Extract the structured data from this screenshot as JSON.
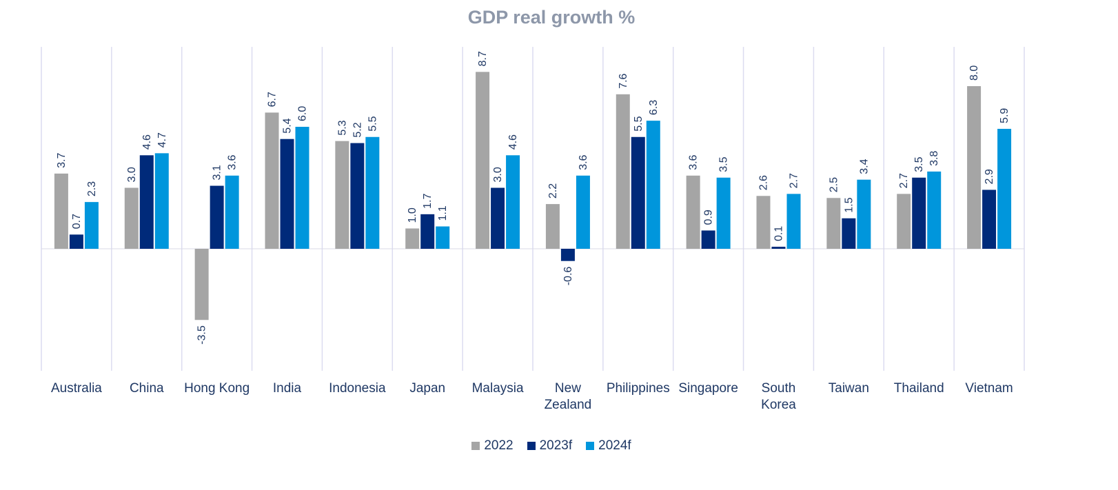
{
  "chart_data": {
    "type": "bar",
    "title": "GDP real growth %",
    "categories": [
      "Australia",
      "China",
      "Hong Kong",
      "India",
      "Indonesia",
      "Japan",
      "Malaysia",
      "New Zealand",
      "Philippines",
      "Singapore",
      "South Korea",
      "Taiwan",
      "Thailand",
      "Vietnam"
    ],
    "category_lines": [
      [
        "Australia"
      ],
      [
        "China"
      ],
      [
        "Hong Kong"
      ],
      [
        "India"
      ],
      [
        "Indonesia"
      ],
      [
        "Japan"
      ],
      [
        "Malaysia"
      ],
      [
        "New",
        "Zealand"
      ],
      [
        "Philippines"
      ],
      [
        "Singapore"
      ],
      [
        "South",
        "Korea"
      ],
      [
        "Taiwan"
      ],
      [
        "Thailand"
      ],
      [
        "Vietnam"
      ]
    ],
    "series": [
      {
        "name": "2022",
        "color": "#a5a5a5",
        "values": [
          3.7,
          3.0,
          -3.5,
          6.7,
          5.3,
          1.0,
          8.7,
          2.2,
          7.6,
          3.6,
          2.6,
          2.5,
          2.7,
          8.0
        ]
      },
      {
        "name": "2023f",
        "color": "#002a7a",
        "values": [
          0.7,
          4.6,
          3.1,
          5.4,
          5.2,
          1.7,
          3.0,
          -0.6,
          5.5,
          0.9,
          0.1,
          1.5,
          3.5,
          2.9
        ]
      },
      {
        "name": "2024f",
        "color": "#0096dc",
        "values": [
          2.3,
          4.7,
          3.6,
          6.0,
          5.5,
          1.1,
          4.6,
          3.6,
          6.3,
          3.5,
          2.7,
          3.4,
          3.8,
          5.9
        ]
      }
    ],
    "ylim": [
      -6,
      10
    ],
    "xlabel": "",
    "ylabel": "",
    "grid": "vertical separators",
    "legend_position": "bottom"
  }
}
